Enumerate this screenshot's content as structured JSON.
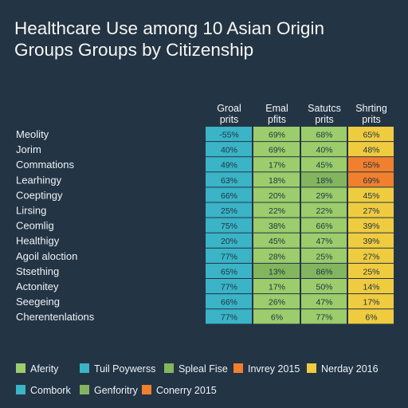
{
  "title_line1": "Healthcare Use among 10 Asian Origin",
  "title_line2": "Groups Groups by Citizenship",
  "colors": {
    "background": "#233445",
    "teal": "#3ab4c6",
    "green": "#9ccc6b",
    "green_dark": "#83b55e",
    "yellow": "#efcb40",
    "orange": "#f07f2e",
    "text": "#eef3f6"
  },
  "chart_data": {
    "type": "table",
    "title": "Healthcare Use among 10 Asian Origin Groups Groups by Citizenship",
    "columns": [
      {
        "line1": "Groal",
        "line2": "prits"
      },
      {
        "line1": "Emal",
        "line2": "pfits"
      },
      {
        "line1": "Satutcs",
        "line2": "prits"
      },
      {
        "line1": "Shrting",
        "line2": "prits"
      }
    ],
    "rows": [
      {
        "label": "Meolity",
        "cells": [
          "-55%",
          "69%",
          "68%",
          "65%"
        ],
        "fills": [
          "teal",
          "green",
          "green",
          "yellow"
        ]
      },
      {
        "label": "Jorim",
        "cells": [
          "40%",
          "69%",
          "40%",
          "48%"
        ],
        "fills": [
          "teal",
          "green",
          "green",
          "yellow"
        ]
      },
      {
        "label": "Commations",
        "cells": [
          "49%",
          "17%",
          "45%",
          "55%"
        ],
        "fills": [
          "teal",
          "green",
          "green",
          "orange"
        ]
      },
      {
        "label": "Learhingy",
        "cells": [
          "63%",
          "18%",
          "18%",
          "69%"
        ],
        "fills": [
          "teal",
          "green",
          "green_dark",
          "orange"
        ]
      },
      {
        "label": "Coeptingy",
        "cells": [
          "66%",
          "20%",
          "29%",
          "45%"
        ],
        "fills": [
          "teal",
          "green",
          "green",
          "yellow"
        ]
      },
      {
        "label": "Lirsing",
        "cells": [
          "25%",
          "22%",
          "22%",
          "27%"
        ],
        "fills": [
          "teal",
          "green",
          "green",
          "yellow"
        ]
      },
      {
        "label": "Ceomlig",
        "cells": [
          "75%",
          "38%",
          "66%",
          "39%"
        ],
        "fills": [
          "teal",
          "green",
          "green",
          "yellow"
        ]
      },
      {
        "label": "Healthigy",
        "cells": [
          "20%",
          "45%",
          "47%",
          "39%"
        ],
        "fills": [
          "teal",
          "green",
          "green",
          "yellow"
        ]
      },
      {
        "label": "Agoil aloction",
        "cells": [
          "77%",
          "28%",
          "25%",
          "27%"
        ],
        "fills": [
          "teal",
          "green",
          "green",
          "yellow"
        ]
      },
      {
        "label": "Stsething",
        "cells": [
          "65%",
          "13%",
          "86%",
          "25%"
        ],
        "fills": [
          "teal",
          "green_dark",
          "green_dark",
          "yellow"
        ]
      },
      {
        "label": "Actonitey",
        "cells": [
          "77%",
          "17%",
          "50%",
          "14%"
        ],
        "fills": [
          "teal",
          "green",
          "green",
          "yellow"
        ]
      },
      {
        "label": "Seegeing",
        "cells": [
          "66%",
          "26%",
          "47%",
          "17%"
        ],
        "fills": [
          "teal",
          "green",
          "green",
          "yellow"
        ]
      },
      {
        "label": "Cherentenlations",
        "cells": [
          "77%",
          "6%",
          "77%",
          "6%"
        ],
        "fills": [
          "teal",
          "green",
          "green",
          "yellow"
        ]
      }
    ]
  },
  "legend": [
    {
      "label": "Aferity",
      "color": "green"
    },
    {
      "label": "Tuil Poywerss",
      "color": "teal"
    },
    {
      "label": "Spleal Fise",
      "color": "green_dark"
    },
    {
      "label": "Invrey 2015",
      "color": "orange"
    },
    {
      "label": "Nerday 2016",
      "color": "yellow"
    },
    {
      "label": "Combork",
      "color": "teal"
    },
    {
      "label": "Genforitry",
      "color": "green_dark"
    },
    {
      "label": "Conerry 2015",
      "color": "orange"
    }
  ]
}
